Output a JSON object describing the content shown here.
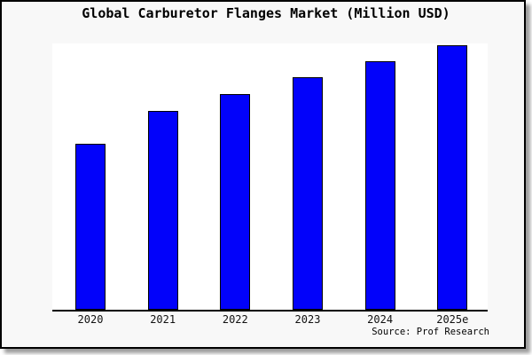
{
  "chart": {
    "title": "Global Carburetor Flanges Market (Million USD)",
    "source_note": "Source: Prof Research",
    "colors": {
      "bar_fill": "#0202fa",
      "bar_border": "#000000",
      "plot_bg": "#ffffff",
      "frame_bg": "#f8f8f8",
      "axis": "#000000"
    }
  },
  "chart_data": {
    "type": "bar",
    "title": "Global Carburetor Flanges Market (Million USD)",
    "categories": [
      "2020",
      "2021",
      "2022",
      "2023",
      "2024",
      "2025e"
    ],
    "values": [
      62.8,
      75.3,
      81.7,
      87.8,
      94.0,
      100.0
    ],
    "value_note": "No y-axis scale or gridlines shown; values are relative bar heights indexed to 2025e = 100",
    "xlabel": "",
    "ylabel": "",
    "ylim": [
      0,
      100.7
    ],
    "grid": false,
    "legend": false,
    "y_axis_visible": false,
    "source": "Source: Prof Research"
  }
}
